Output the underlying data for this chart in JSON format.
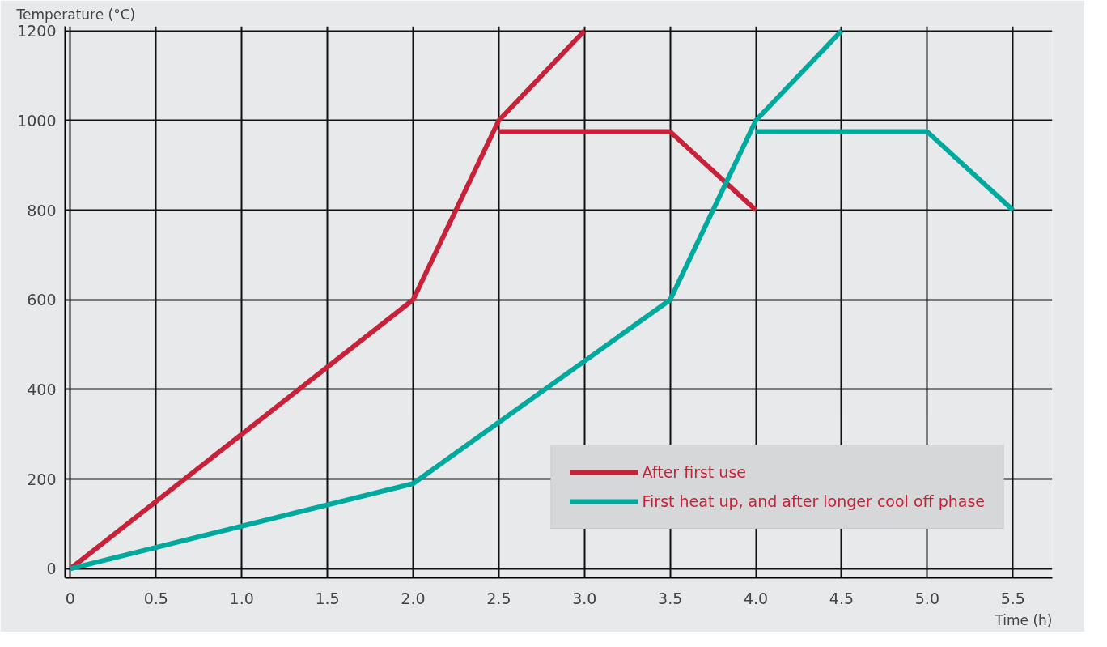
{
  "chart_data": {
    "type": "line",
    "ylabel": "Temperature (°C)",
    "xlabel": "Time (h)",
    "series": [
      {
        "name": "After first use",
        "color": "#c8223a",
        "x": [
          0,
          2.0,
          2.5,
          3.0,
          null,
          2.5,
          3.5,
          4.0
        ],
        "values": [
          0,
          600,
          1000,
          1200,
          null,
          975,
          975,
          800
        ]
      },
      {
        "name": "First heat up, and after longer cool off phase",
        "color": "#00a99d",
        "x": [
          0,
          2.0,
          3.5,
          4.0,
          4.5,
          null,
          4.0,
          5.0,
          5.5
        ],
        "values": [
          0,
          190,
          600,
          1000,
          1200,
          null,
          975,
          975,
          800
        ]
      }
    ],
    "xlim": [
      -0.03,
      5.73
    ],
    "ylim": [
      -20,
      1210
    ],
    "xticks": [
      0,
      0.5,
      {
        "value": 1,
        "label": "1.0"
      },
      1.5,
      {
        "value": 2,
        "label": "2.0"
      },
      2.5,
      {
        "value": 3,
        "label": "3.0"
      },
      3.5,
      {
        "value": 4,
        "label": "4.0"
      },
      4.5,
      {
        "value": 5,
        "label": "5.0"
      },
      5.5
    ],
    "yticks": [
      0,
      200,
      400,
      600,
      800,
      1000,
      1200
    ],
    "grid": true,
    "legend": "bottom right",
    "marker": "none",
    "line_style": "solid"
  }
}
